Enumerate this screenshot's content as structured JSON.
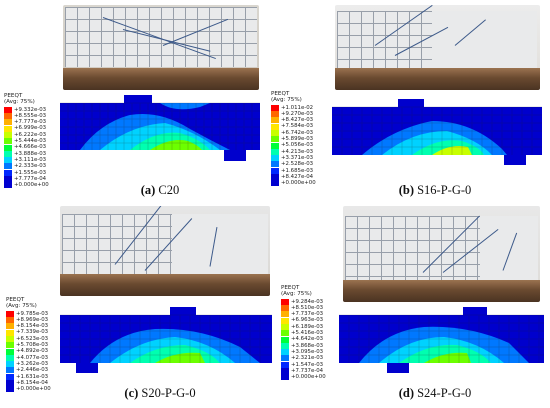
{
  "legend": {
    "title": "PEEQT",
    "subtitle": "(Avg: 75%)",
    "colors": [
      "#ff0000",
      "#ff6600",
      "#ffb000",
      "#ffe600",
      "#c8ff00",
      "#6cff00",
      "#00ff3a",
      "#00ffb0",
      "#00d2ff",
      "#0078ff",
      "#0028ff",
      "#0000d0"
    ]
  },
  "panels": [
    {
      "caption_letter": "(a)",
      "caption_label": "C20",
      "legend_values": [
        "+9.332e-03",
        "+8.555e-03",
        "+7.777e-03",
        "+6.999e-03",
        "+6.222e-03",
        "+5.444e-03",
        "+4.666e-03",
        "+3.888e-03",
        "+3.111e-03",
        "+2.333e-03",
        "+1.555e-03",
        "+7.777e-04",
        "+0.000e+00"
      ]
    },
    {
      "caption_letter": "(b)",
      "caption_label": "S16-P-G-0",
      "legend_values": [
        "+1.011e-02",
        "+9.270e-03",
        "+8.427e-03",
        "+7.584e-03",
        "+6.742e-03",
        "+5.899e-03",
        "+5.056e-03",
        "+4.213e-03",
        "+3.371e-03",
        "+2.528e-03",
        "+1.685e-03",
        "+8.427e-04",
        "+0.000e+00"
      ]
    },
    {
      "caption_letter": "(c)",
      "caption_label": "S20-P-G-0",
      "legend_values": [
        "+9.785e-03",
        "+8.969e-03",
        "+8.154e-03",
        "+7.339e-03",
        "+6.523e-03",
        "+5.708e-03",
        "+4.892e-03",
        "+4.077e-03",
        "+3.262e-03",
        "+2.446e-03",
        "+1.631e-03",
        "+8.154e-04",
        "+0.000e+00"
      ]
    },
    {
      "caption_letter": "(d)",
      "caption_label": "S24-P-G-0",
      "legend_values": [
        "+9.284e-03",
        "+8.510e-03",
        "+7.737e-03",
        "+6.963e-03",
        "+6.189e-03",
        "+5.416e-03",
        "+4.642e-03",
        "+3.868e-03",
        "+3.095e-03",
        "+2.321e-03",
        "+1.547e-03",
        "+7.737e-04",
        "+0.000e+00"
      ]
    }
  ]
}
